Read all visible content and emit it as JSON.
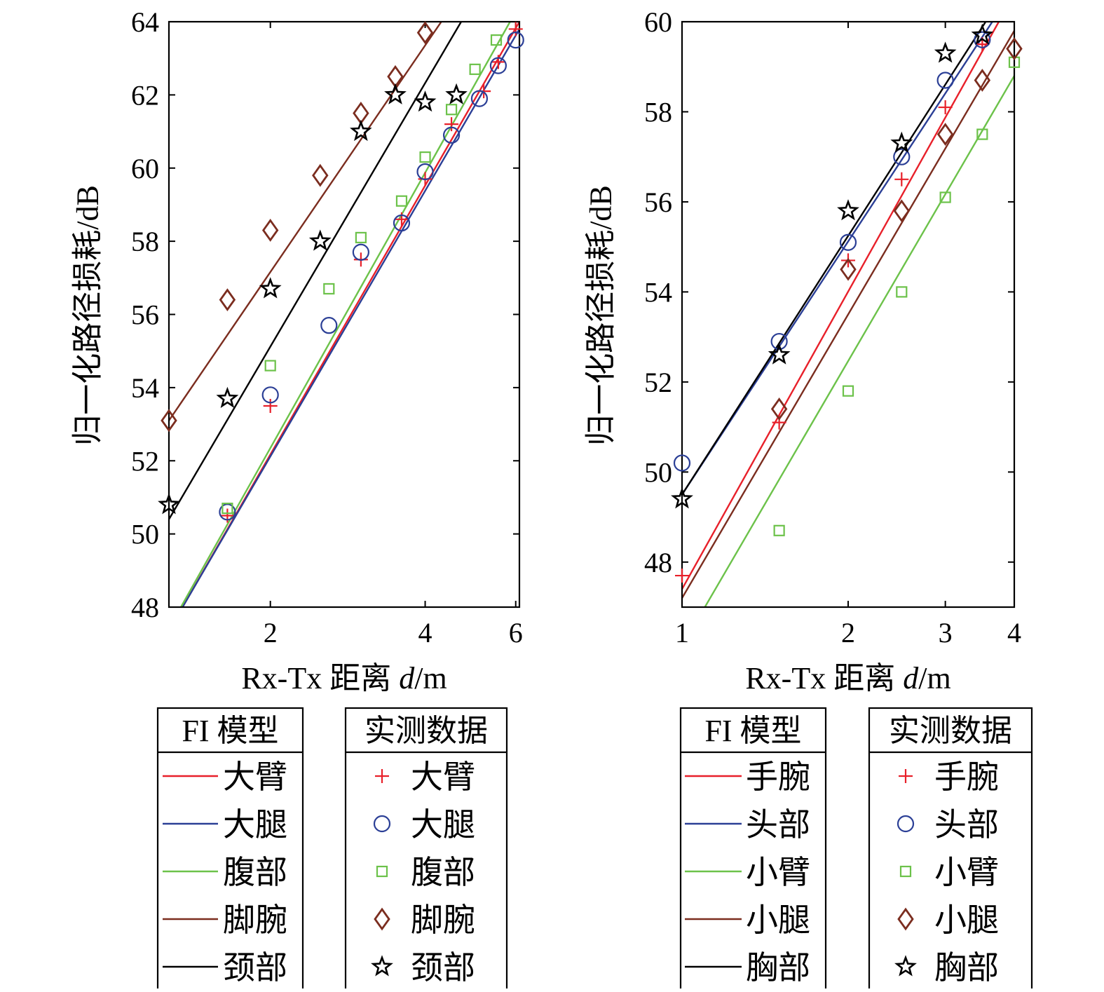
{
  "chart_data": [
    {
      "type": "scatter",
      "xscale": "log",
      "xlim": [
        1.27,
        6.1
      ],
      "ylim": [
        48,
        64
      ],
      "xticks": [
        2,
        4,
        6
      ],
      "yticks": [
        48,
        50,
        52,
        54,
        56,
        58,
        60,
        62,
        64
      ],
      "xtick_labels": [
        "2",
        "4",
        "6"
      ],
      "ytick_labels": [
        "48",
        "50",
        "52",
        "54",
        "56",
        "58",
        "60",
        "62",
        "64"
      ],
      "xlabel_prefix": "Rx-Tx 距离 ",
      "xlabel_var": "d",
      "xlabel_unit": "/m",
      "ylabel": "归一化路径损耗/dB",
      "legend_model_title": "FI 模型",
      "legend_data_title": "实测数据",
      "series": [
        {
          "name": "大臂",
          "color": "#e8202a",
          "marker": "plus",
          "points": [
            [
              1.65,
              50.5
            ],
            [
              2.0,
              53.5
            ],
            [
              3.0,
              57.5
            ],
            [
              3.6,
              58.6
            ],
            [
              4.0,
              59.7
            ],
            [
              4.5,
              61.2
            ],
            [
              5.2,
              62.1
            ],
            [
              5.55,
              62.9
            ],
            [
              6.0,
              63.8
            ]
          ],
          "fit": [
            [
              1.35,
              48.0
            ],
            [
              6.1,
              64.0
            ]
          ]
        },
        {
          "name": "大腿",
          "color": "#2b3f96",
          "marker": "circle",
          "points": [
            [
              1.65,
              50.6
            ],
            [
              2.0,
              53.8
            ],
            [
              2.6,
              55.7
            ],
            [
              3.0,
              57.7
            ],
            [
              3.6,
              58.5
            ],
            [
              4.0,
              59.9
            ],
            [
              4.5,
              60.9
            ],
            [
              5.1,
              61.9
            ],
            [
              5.55,
              62.8
            ],
            [
              6.0,
              63.5
            ]
          ],
          "fit": [
            [
              1.35,
              48.0
            ],
            [
              6.1,
              63.8
            ]
          ]
        },
        {
          "name": "腹部",
          "color": "#6cc24a",
          "marker": "square",
          "points": [
            [
              1.65,
              50.7
            ],
            [
              2.0,
              54.6
            ],
            [
              2.6,
              56.7
            ],
            [
              3.0,
              58.1
            ],
            [
              3.6,
              59.1
            ],
            [
              4.0,
              60.3
            ],
            [
              4.5,
              61.6
            ],
            [
              5.0,
              62.7
            ],
            [
              5.5,
              63.5
            ]
          ],
          "fit": [
            [
              1.34,
              48.0
            ],
            [
              5.85,
              64.0
            ]
          ]
        },
        {
          "name": "脚腕",
          "color": "#7b2d1f",
          "marker": "diamond",
          "points": [
            [
              1.27,
              53.1
            ],
            [
              1.65,
              56.4
            ],
            [
              2.0,
              58.3
            ],
            [
              2.5,
              59.8
            ],
            [
              3.0,
              61.5
            ],
            [
              3.5,
              62.5
            ],
            [
              4.0,
              63.7
            ]
          ],
          "fit": [
            [
              1.27,
              53.1
            ],
            [
              4.3,
              64.0
            ]
          ]
        },
        {
          "name": "颈部",
          "color": "#000000",
          "marker": "star",
          "points": [
            [
              1.27,
              50.8
            ],
            [
              1.65,
              53.7
            ],
            [
              2.0,
              56.7
            ],
            [
              2.5,
              58.0
            ],
            [
              3.0,
              61.0
            ],
            [
              3.5,
              62.0
            ],
            [
              4.0,
              61.8
            ],
            [
              4.6,
              62.0
            ]
          ],
          "fit": [
            [
              1.27,
              50.4
            ],
            [
              4.7,
              64.0
            ]
          ]
        }
      ]
    },
    {
      "type": "scatter",
      "xscale": "log",
      "xlim": [
        1.0,
        4.0
      ],
      "ylim": [
        47,
        60
      ],
      "xticks": [
        1,
        2,
        3,
        4
      ],
      "yticks": [
        48,
        50,
        52,
        54,
        56,
        58,
        60
      ],
      "xtick_labels": [
        "1",
        "2",
        "3",
        "4"
      ],
      "ytick_labels": [
        "48",
        "50",
        "52",
        "54",
        "56",
        "58",
        "60"
      ],
      "xlabel_prefix": "Rx-Tx 距离 ",
      "xlabel_var": "d",
      "xlabel_unit": "/m",
      "ylabel": "归一化路径损耗/dB",
      "legend_model_title": "FI 模型",
      "legend_data_title": "实测数据",
      "series": [
        {
          "name": "手腕",
          "color": "#e8202a",
          "marker": "plus",
          "points": [
            [
              1.0,
              47.7
            ],
            [
              1.5,
              51.1
            ],
            [
              2.0,
              54.7
            ],
            [
              2.5,
              56.5
            ],
            [
              3.0,
              58.1
            ],
            [
              3.5,
              59.5
            ]
          ],
          "fit": [
            [
              1.0,
              47.4
            ],
            [
              3.75,
              60.0
            ]
          ]
        },
        {
          "name": "头部",
          "color": "#2b3f96",
          "marker": "circle",
          "points": [
            [
              1.0,
              50.2
            ],
            [
              1.5,
              52.9
            ],
            [
              2.0,
              55.1
            ],
            [
              2.5,
              57.0
            ],
            [
              3.0,
              58.7
            ],
            [
              3.5,
              59.6
            ]
          ],
          "fit": [
            [
              1.0,
              49.5
            ],
            [
              3.65,
              60.0
            ]
          ]
        },
        {
          "name": "小臂",
          "color": "#6cc24a",
          "marker": "square",
          "points": [
            [
              1.5,
              48.7
            ],
            [
              2.0,
              51.8
            ],
            [
              2.5,
              54.0
            ],
            [
              3.0,
              56.1
            ],
            [
              3.5,
              57.5
            ],
            [
              4.0,
              59.1
            ]
          ],
          "fit": [
            [
              1.1,
              47.0
            ],
            [
              4.0,
              58.8
            ]
          ]
        },
        {
          "name": "小腿",
          "color": "#7b2d1f",
          "marker": "diamond",
          "points": [
            [
              1.5,
              51.4
            ],
            [
              2.0,
              54.5
            ],
            [
              2.5,
              55.8
            ],
            [
              3.0,
              57.5
            ],
            [
              3.5,
              58.7
            ],
            [
              4.0,
              59.4
            ]
          ],
          "fit": [
            [
              1.0,
              47.2
            ],
            [
              4.0,
              59.8
            ]
          ]
        },
        {
          "name": "胸部",
          "color": "#000000",
          "marker": "star",
          "points": [
            [
              1.0,
              49.4
            ],
            [
              1.5,
              52.6
            ],
            [
              2.0,
              55.8
            ],
            [
              2.5,
              57.3
            ],
            [
              3.0,
              59.3
            ],
            [
              3.5,
              59.7
            ]
          ],
          "fit": [
            [
              1.0,
              49.5
            ],
            [
              3.55,
              60.0
            ]
          ]
        }
      ]
    }
  ]
}
